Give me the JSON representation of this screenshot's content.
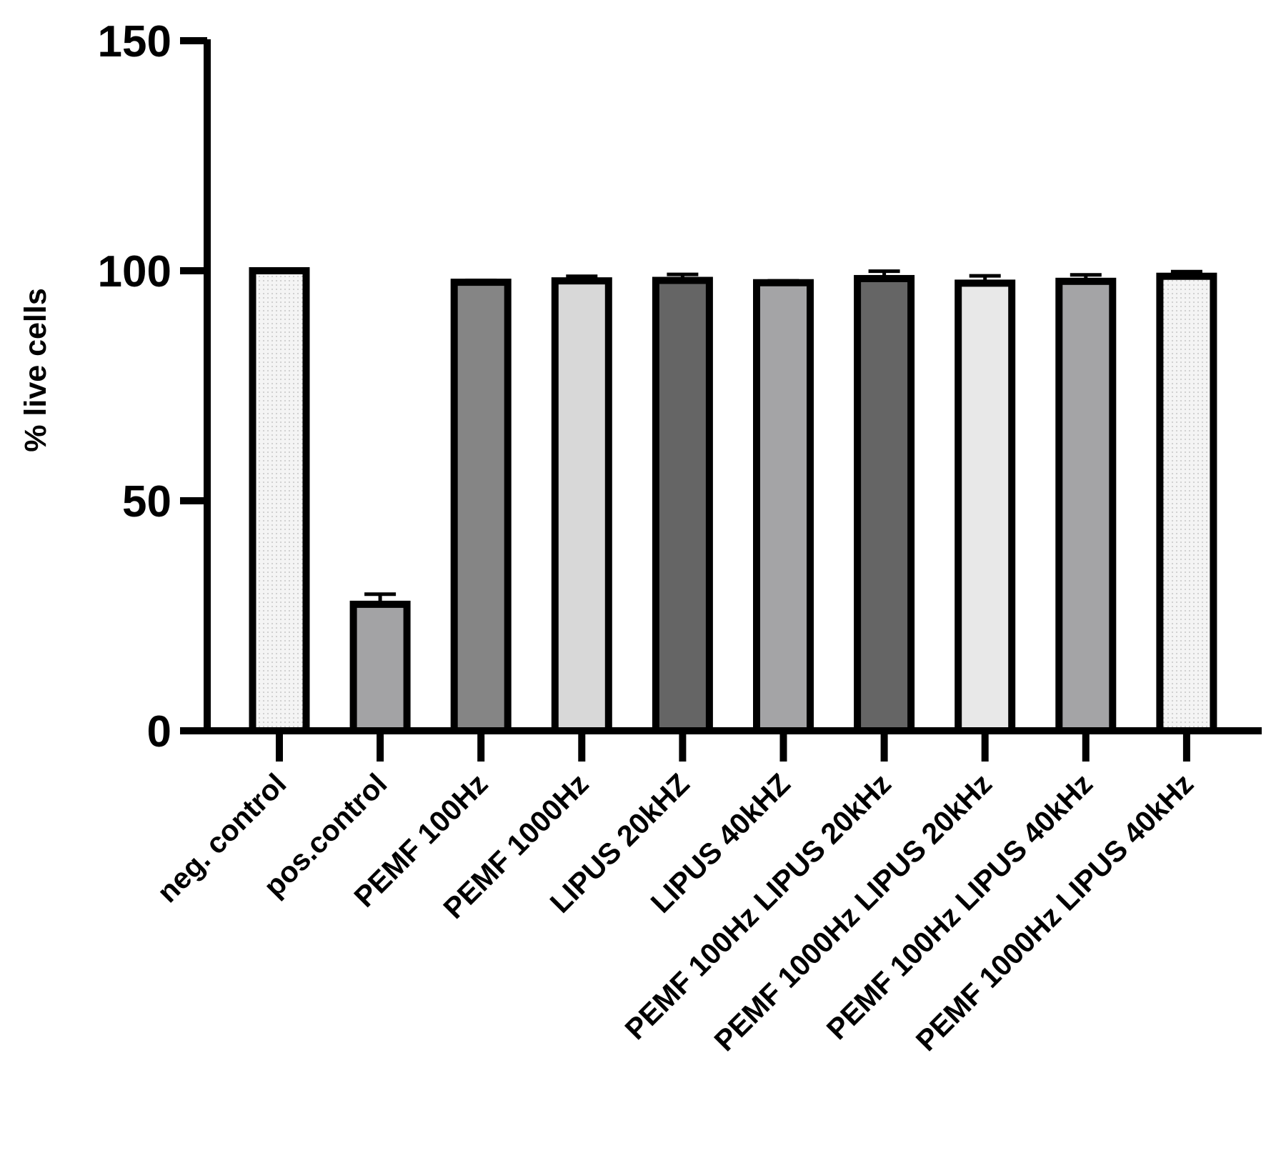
{
  "chart_data": {
    "type": "bar",
    "title": "",
    "xlabel": "",
    "ylabel": "% live cells",
    "ylim": [
      0,
      150
    ],
    "yticks": [
      0,
      50,
      100,
      150
    ],
    "grid": false,
    "legend": "none",
    "categories": [
      "neg. control",
      "pos.control",
      "PEMF 100Hz",
      "PEMF 1000Hz",
      "LIPUS 20kHZ",
      "LIPUS 40kHZ",
      "PEMF 100Hz LIPUS 20kHz",
      "PEMF 1000Hz LIPUS 20kHz",
      "PEMF 100Hz LIPUS 40kHz",
      "PEMF 1000Hz LIPUS 40kHz"
    ],
    "values": [
      100,
      27.5,
      97.5,
      97.8,
      97.9,
      97.4,
      98.3,
      97.3,
      97.7,
      98.8
    ],
    "errors": [
      0,
      2.2,
      0.4,
      1.0,
      1.3,
      0.4,
      1.6,
      1.6,
      1.4,
      1.0
    ],
    "fill_colors": [
      "#f2f2f2",
      "#a3a3a5",
      "#858585",
      "#d8d8d8",
      "#656565",
      "#a4a4a6",
      "#656565",
      "#e8e8e8",
      "#a4a4a6",
      "#f2f2f2"
    ],
    "dotted_fill": [
      true,
      false,
      false,
      false,
      false,
      false,
      false,
      false,
      false,
      true
    ],
    "edge_color": "#000000"
  }
}
